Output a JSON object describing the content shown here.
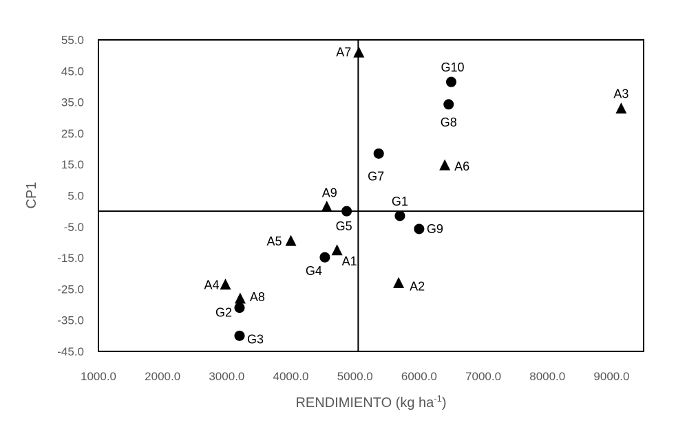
{
  "chart_data": {
    "type": "scatter",
    "title": "",
    "xlabel": "RENDIMIENTO (kg ha",
    "xlabel_sup": "-1",
    "xlabel_close": ")",
    "ylabel": "CP1",
    "xlim": [
      1000,
      9500
    ],
    "ylim": [
      -45,
      55
    ],
    "x_ticks": [
      "1000.0",
      "2000.0",
      "3000.0",
      "4000.0",
      "5000.0",
      "6000.0",
      "7000.0",
      "8000.0",
      "9000.0"
    ],
    "y_ticks": [
      "55.0",
      "45.0",
      "35.0",
      "25.0",
      "15.0",
      "5.0",
      "-5.0",
      "-15.0",
      "-25.0",
      "-35.0",
      "-45.0"
    ],
    "reference_lines": {
      "x": 5050,
      "y": 0
    },
    "series": [
      {
        "name": "G",
        "marker": "circle",
        "points": [
          {
            "label": "G1",
            "x": 5700,
            "y": -1.5
          },
          {
            "label": "G2",
            "x": 3200,
            "y": -31
          },
          {
            "label": "G3",
            "x": 3200,
            "y": -40
          },
          {
            "label": "G4",
            "x": 4530,
            "y": -14.8
          },
          {
            "label": "G5",
            "x": 4870,
            "y": 0
          },
          {
            "label": "G7",
            "x": 5370,
            "y": 18.5
          },
          {
            "label": "G8",
            "x": 6460,
            "y": 34.3
          },
          {
            "label": "G9",
            "x": 6000,
            "y": -5.7
          },
          {
            "label": "G10",
            "x": 6500,
            "y": 41.5
          }
        ]
      },
      {
        "name": "A",
        "marker": "triangle",
        "points": [
          {
            "label": "A1",
            "x": 4720,
            "y": -12.5
          },
          {
            "label": "A2",
            "x": 5680,
            "y": -23
          },
          {
            "label": "A3",
            "x": 9150,
            "y": 33
          },
          {
            "label": "A4",
            "x": 2980,
            "y": -23.5
          },
          {
            "label": "A5",
            "x": 4000,
            "y": -9.5
          },
          {
            "label": "A6",
            "x": 6400,
            "y": 14.8
          },
          {
            "label": "A7",
            "x": 5060,
            "y": 51
          },
          {
            "label": "A8",
            "x": 3210,
            "y": -28
          },
          {
            "label": "A9",
            "x": 4560,
            "y": 1.5
          }
        ]
      }
    ]
  }
}
